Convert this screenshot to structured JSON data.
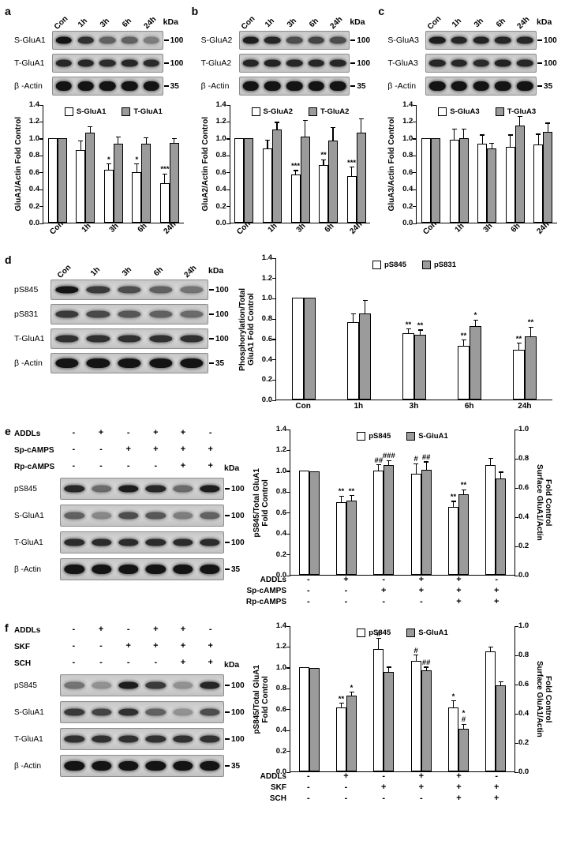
{
  "panels": {
    "a": {
      "label": "a",
      "blot": {
        "kda": "kDa",
        "lanes": [
          "Con",
          "1h",
          "3h",
          "6h",
          "24h"
        ],
        "rows": [
          {
            "name": "S-GluA1",
            "marker": "100",
            "intensities": [
              1,
              0.85,
              0.6,
              0.6,
              0.45
            ]
          },
          {
            "name": "T-GluA1",
            "marker": "100",
            "intensities": [
              0.9,
              0.9,
              0.88,
              0.9,
              0.88
            ]
          },
          {
            "name": "β -Actin",
            "marker": "35",
            "intensities": [
              1,
              1,
              1,
              1,
              1
            ],
            "band_h": 12
          }
        ]
      },
      "chart": {
        "type": "bar",
        "h": 150,
        "barw": 12,
        "ylabel": "GluA1/Actin Fold Control",
        "ylim": [
          0,
          1.4
        ],
        "yticks": [
          0,
          0.2,
          0.4,
          0.6,
          0.8,
          1,
          1.2,
          1.4
        ],
        "categories": [
          "Con",
          "1h",
          "3h",
          "6h",
          "24h"
        ],
        "xrot": true,
        "series": [
          {
            "name": "S-GluA1",
            "fill": "#ffffff",
            "values": [
              1.0,
              0.86,
              0.63,
              0.6,
              0.47
            ],
            "errors": [
              0,
              0.1,
              0.06,
              0.09,
              0.1
            ],
            "sig": [
              "",
              "",
              "*",
              "*",
              "***"
            ]
          },
          {
            "name": "T-GluA1",
            "fill": "#9b9b9b",
            "values": [
              1.0,
              1.06,
              0.93,
              0.93,
              0.94
            ],
            "errors": [
              0,
              0.07,
              0.08,
              0.07,
              0.05
            ],
            "sig": [
              "",
              "",
              "",
              "",
              ""
            ]
          }
        ]
      }
    },
    "b": {
      "label": "b",
      "blot": {
        "kda": "kDa",
        "lanes": [
          "Con",
          "1h",
          "3h",
          "6h",
          "24h"
        ],
        "rows": [
          {
            "name": "S-GluA2",
            "marker": "100",
            "intensities": [
              0.95,
              0.9,
              0.7,
              0.75,
              0.7
            ]
          },
          {
            "name": "T-GluA2",
            "marker": "100",
            "intensities": [
              0.9,
              0.92,
              0.9,
              0.9,
              0.9
            ]
          },
          {
            "name": "β -Actin",
            "marker": "35",
            "intensities": [
              1,
              1,
              1,
              1,
              1
            ],
            "band_h": 12
          }
        ]
      },
      "chart": {
        "type": "bar",
        "h": 150,
        "barw": 12,
        "ylabel": "GluA2/Actin Fold Control",
        "ylim": [
          0,
          1.4
        ],
        "yticks": [
          0,
          0.2,
          0.4,
          0.6,
          0.8,
          1,
          1.2,
          1.4
        ],
        "categories": [
          "Con",
          "1h",
          "3h",
          "6h",
          "24h"
        ],
        "xrot": true,
        "series": [
          {
            "name": "S-GluA2",
            "fill": "#ffffff",
            "values": [
              1.0,
              0.88,
              0.57,
              0.68,
              0.55
            ],
            "errors": [
              0,
              0.09,
              0.04,
              0.06,
              0.1
            ],
            "sig": [
              "",
              "",
              "***",
              "**",
              "***"
            ]
          },
          {
            "name": "T-GluA2",
            "fill": "#9b9b9b",
            "values": [
              1.0,
              1.1,
              1.02,
              0.97,
              1.06
            ],
            "errors": [
              0,
              0.08,
              0.18,
              0.15,
              0.16
            ],
            "sig": [
              "",
              "",
              "",
              "",
              ""
            ]
          }
        ]
      }
    },
    "c": {
      "label": "c",
      "blot": {
        "kda": "kDa",
        "lanes": [
          "Con",
          "1h",
          "3h",
          "6h",
          "24h"
        ],
        "rows": [
          {
            "name": "S-GluA3",
            "marker": "100",
            "intensities": [
              0.95,
              0.9,
              0.92,
              0.9,
              0.9
            ]
          },
          {
            "name": "T-GluA3",
            "marker": "100",
            "intensities": [
              0.9,
              0.9,
              0.88,
              0.92,
              0.9
            ]
          },
          {
            "name": "β -Actin",
            "marker": "35",
            "intensities": [
              1,
              1,
              1,
              1,
              1
            ],
            "band_h": 12
          }
        ]
      },
      "chart": {
        "type": "bar",
        "h": 150,
        "barw": 12,
        "ylabel": "GluA3/Actin Fold Control",
        "ylim": [
          0,
          1.4
        ],
        "yticks": [
          0,
          0.2,
          0.4,
          0.6,
          0.8,
          1,
          1.2,
          1.4
        ],
        "categories": [
          "Con",
          "1h",
          "3h",
          "6h",
          "24h"
        ],
        "xrot": true,
        "series": [
          {
            "name": "S-GluA3",
            "fill": "#ffffff",
            "values": [
              1.0,
              0.98,
              0.93,
              0.9,
              0.92
            ],
            "errors": [
              0,
              0.12,
              0.1,
              0.13,
              0.12
            ],
            "sig": [
              "",
              "",
              "",
              "",
              ""
            ]
          },
          {
            "name": "T-GluA3",
            "fill": "#9b9b9b",
            "values": [
              1.0,
              1.0,
              0.88,
              1.15,
              1.07
            ],
            "errors": [
              0,
              0.1,
              0.05,
              0.1,
              0.1
            ],
            "sig": [
              "",
              "",
              "",
              "",
              ""
            ]
          }
        ]
      }
    },
    "d": {
      "label": "d",
      "blot": {
        "kda": "kDa",
        "lanes": [
          "Con",
          "1h",
          "3h",
          "6h",
          "24h"
        ],
        "rows": [
          {
            "name": "pS845",
            "marker": "100",
            "intensities": [
              1,
              0.8,
              0.7,
              0.6,
              0.5
            ]
          },
          {
            "name": "pS831",
            "marker": "100",
            "intensities": [
              0.8,
              0.72,
              0.65,
              0.6,
              0.55
            ]
          },
          {
            "name": "T-GluA1",
            "marker": "100",
            "intensities": [
              0.85,
              0.85,
              0.85,
              0.85,
              0.85
            ]
          },
          {
            "name": "β -Actin",
            "marker": "35",
            "intensities": [
              1,
              1,
              1,
              1,
              1
            ],
            "band_h": 12
          }
        ]
      },
      "chart": {
        "type": "bar",
        "h": 180,
        "barw": 15,
        "ylabel": "Phosphorylation/Total\nGluA1 Fold Control",
        "ylim": [
          0,
          1.4
        ],
        "yticks": [
          0,
          0.2,
          0.4,
          0.6,
          0.8,
          1,
          1.2,
          1.4
        ],
        "categories": [
          "Con",
          "1h",
          "3h",
          "6h",
          "24h"
        ],
        "xrot": false,
        "series": [
          {
            "name": "pS845",
            "fill": "#ffffff",
            "values": [
              1.0,
              0.76,
              0.65,
              0.53,
              0.49
            ],
            "errors": [
              0,
              0.08,
              0.04,
              0.05,
              0.06
            ],
            "sig": [
              "",
              "",
              "**",
              "**",
              "**"
            ]
          },
          {
            "name": "pS831",
            "fill": "#9b9b9b",
            "values": [
              1.0,
              0.85,
              0.64,
              0.72,
              0.62
            ],
            "errors": [
              0,
              0.12,
              0.04,
              0.06,
              0.09
            ],
            "sig": [
              "",
              "",
              "**",
              "*",
              "**"
            ]
          }
        ]
      }
    },
    "e": {
      "label": "e",
      "blot": {
        "kda": "kDa",
        "matrix": [
          {
            "label": "ADDLs",
            "values": [
              "-",
              "+",
              "-",
              "+",
              "+",
              "-"
            ]
          },
          {
            "label": "Sp-cAMPS",
            "values": [
              "-",
              "-",
              "+",
              "+",
              "+",
              "+"
            ]
          },
          {
            "label": "Rp-cAMPS",
            "values": [
              "-",
              "-",
              "-",
              "-",
              "+",
              "+"
            ]
          }
        ],
        "rows": [
          {
            "name": "pS845",
            "marker": "100",
            "intensities": [
              0.9,
              0.55,
              0.95,
              0.9,
              0.55,
              0.95
            ]
          },
          {
            "name": "S-GluA1",
            "marker": "100",
            "intensities": [
              0.6,
              0.4,
              0.7,
              0.65,
              0.45,
              0.6
            ]
          },
          {
            "name": "T-GluA1",
            "marker": "100",
            "intensities": [
              0.88,
              0.88,
              0.88,
              0.88,
              0.88,
              0.88
            ]
          },
          {
            "name": "β -Actin",
            "marker": "35",
            "intensities": [
              1,
              1,
              1,
              1,
              1,
              1
            ],
            "band_h": 12
          }
        ]
      },
      "chart": {
        "type": "bar",
        "h": 185,
        "barw": 13,
        "ylabel": "pS845/Total GluA1\nFold Control",
        "y2label": "Surface GluA1/Actin\nFold Control",
        "ylim": [
          0,
          1.4
        ],
        "y2lim": [
          0,
          1.0
        ],
        "yticks": [
          0,
          0.2,
          0.4,
          0.6,
          0.8,
          1,
          1.2,
          1.4
        ],
        "y2ticks": [
          0,
          0.2,
          0.4,
          0.6,
          0.8,
          1
        ],
        "xmatrix": [
          {
            "label": "ADDLs",
            "values": [
              "-",
              "+",
              "-",
              "+",
              "+",
              "-"
            ]
          },
          {
            "label": "Sp-cAMPS",
            "values": [
              "-",
              "-",
              "+",
              "+",
              "+",
              "+"
            ]
          },
          {
            "label": "Rp-cAMPS",
            "values": [
              "-",
              "-",
              "-",
              "-",
              "+",
              "+"
            ]
          }
        ],
        "series": [
          {
            "name": "pS845",
            "fill": "#ffffff",
            "values": [
              1.0,
              0.7,
              1.0,
              0.97,
              0.65,
              1.05
            ],
            "errors": [
              0,
              0.05,
              0.05,
              0.09,
              0.05,
              0.06
            ],
            "sig": [
              "",
              "**",
              "##",
              "#",
              "**",
              ""
            ]
          },
          {
            "name": "S-GluA1",
            "fill": "#9b9b9b",
            "axis": "right",
            "values": [
              0.71,
              0.51,
              0.75,
              0.72,
              0.55,
              0.66
            ],
            "errors": [
              0,
              0.03,
              0.03,
              0.05,
              0.03,
              0.04
            ],
            "sig": [
              "",
              "**",
              "###",
              "##",
              "**",
              ""
            ]
          }
        ]
      }
    },
    "f": {
      "label": "f",
      "blot": {
        "kda": "kDa",
        "matrix": [
          {
            "label": "ADDLs",
            "values": [
              "-",
              "+",
              "-",
              "+",
              "+",
              "-"
            ]
          },
          {
            "label": "SKF",
            "values": [
              "-",
              "-",
              "+",
              "+",
              "+",
              "+"
            ]
          },
          {
            "label": "SCH",
            "values": [
              "-",
              "-",
              "-",
              "-",
              "+",
              "+"
            ]
          }
        ],
        "rows": [
          {
            "name": "pS845",
            "marker": "100",
            "intensities": [
              0.5,
              0.35,
              0.95,
              0.8,
              0.35,
              0.9
            ]
          },
          {
            "name": "S-GluA1",
            "marker": "100",
            "intensities": [
              0.8,
              0.75,
              0.85,
              0.6,
              0.35,
              0.7
            ]
          },
          {
            "name": "T-GluA1",
            "marker": "100",
            "intensities": [
              0.85,
              0.85,
              0.85,
              0.85,
              0.85,
              0.85
            ]
          },
          {
            "name": "β -Actin",
            "marker": "35",
            "intensities": [
              1,
              1,
              1,
              1,
              1,
              1
            ],
            "band_h": 12
          }
        ]
      },
      "chart": {
        "type": "bar",
        "h": 185,
        "barw": 13,
        "ylabel": "pS845/Total GluA1\nFold Control",
        "y2label": "Surface GluA1/Actin\nFold Control",
        "ylim": [
          0,
          1.4
        ],
        "y2lim": [
          0,
          1.0
        ],
        "yticks": [
          0,
          0.2,
          0.4,
          0.6,
          0.8,
          1,
          1.2,
          1.4
        ],
        "y2ticks": [
          0,
          0.2,
          0.4,
          0.6,
          0.8,
          1
        ],
        "xmatrix": [
          {
            "label": "ADDLs",
            "values": [
              "-",
              "+",
              "-",
              "+",
              "+",
              "-"
            ]
          },
          {
            "label": "SKF",
            "values": [
              "-",
              "-",
              "+",
              "+",
              "+",
              "+"
            ]
          },
          {
            "label": "SCH",
            "values": [
              "-",
              "-",
              "-",
              "-",
              "+",
              "+"
            ]
          }
        ],
        "series": [
          {
            "name": "pS845",
            "fill": "#ffffff",
            "values": [
              1.0,
              0.61,
              1.17,
              1.06,
              0.61,
              1.15
            ],
            "errors": [
              0,
              0.04,
              0.1,
              0.05,
              0.06,
              0.04
            ],
            "sig": [
              "",
              "**",
              "#",
              "#",
              "*",
              ""
            ]
          },
          {
            "name": "S-GluA1",
            "fill": "#9b9b9b",
            "axis": "right",
            "values": [
              0.71,
              0.52,
              0.68,
              0.69,
              0.29,
              0.59
            ],
            "errors": [
              0,
              0.02,
              0.03,
              0.02,
              0.03,
              0.02
            ],
            "sig": [
              "",
              "*",
              "",
              "##",
              "*\n#",
              ""
            ]
          }
        ]
      }
    }
  }
}
